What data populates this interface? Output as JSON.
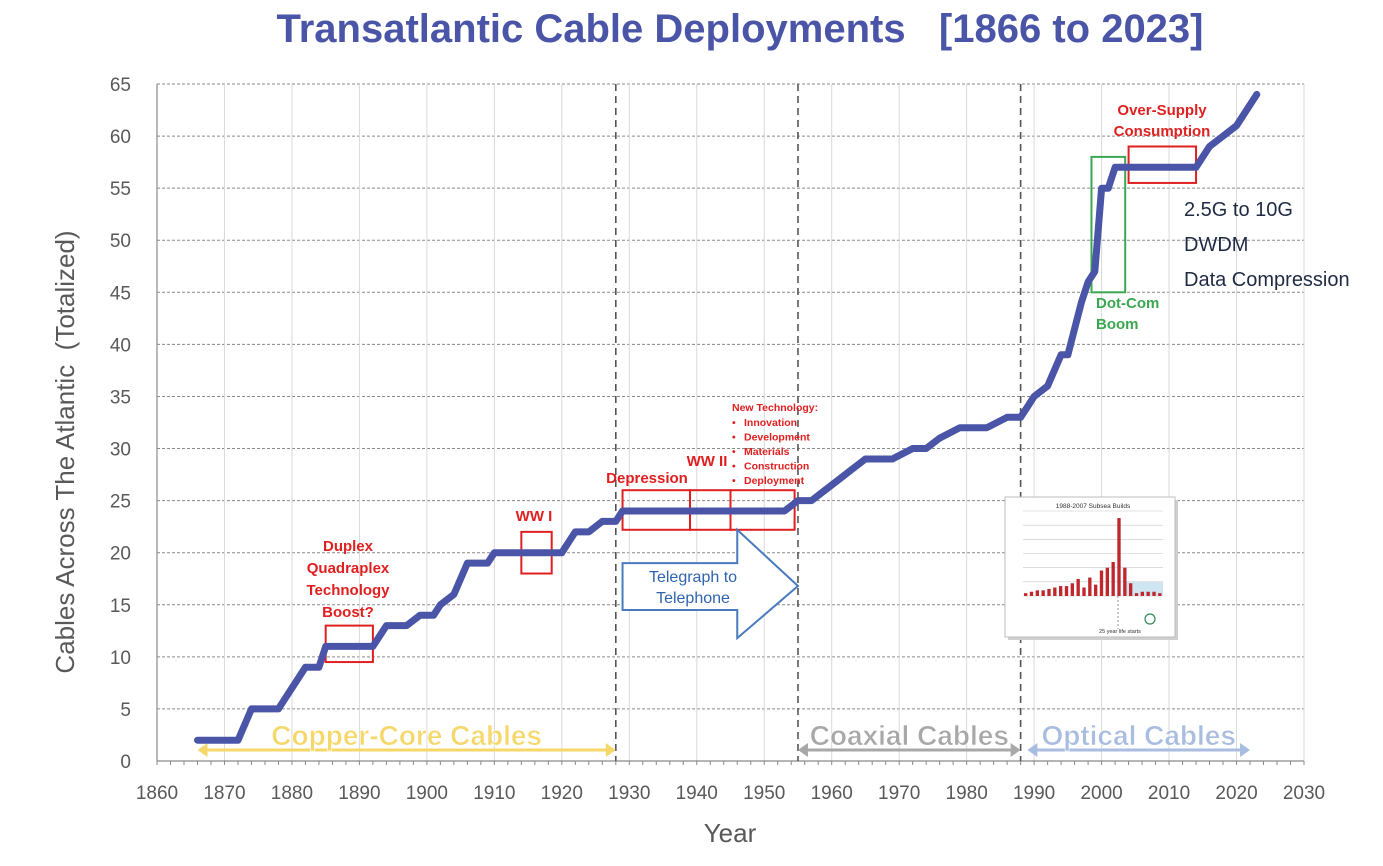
{
  "colors": {
    "line": "#4a55a8",
    "title": "#4a55a8",
    "grid": "#a6a6a6",
    "annotation_red": "#e02020",
    "annotation_green": "#3aa850",
    "copper": "#f5d76a",
    "coax": "#a8a8a8",
    "optical": "#a9bde0",
    "arrow_blue": "#4a7bbf"
  },
  "chart_data": {
    "type": "line",
    "title": "Transatlantic Cable Deployments   [1866 to 2023]",
    "xlabel": "Year",
    "ylabel": "Cables Across The Atlantic  (Totalized)",
    "xlim": [
      1860,
      2030
    ],
    "ylim": [
      0,
      65
    ],
    "xticks": [
      1860,
      1870,
      1880,
      1890,
      1900,
      1910,
      1920,
      1930,
      1940,
      1950,
      1960,
      1970,
      1980,
      1990,
      2000,
      2010,
      2020,
      2030
    ],
    "yticks": [
      0,
      5,
      10,
      15,
      20,
      25,
      30,
      35,
      40,
      45,
      50,
      55,
      60,
      65
    ],
    "grid": true,
    "series": [
      {
        "name": "Cables Across The Atlantic (Totalized)",
        "x": [
          1866,
          1872,
          1874,
          1878,
          1882,
          1884,
          1885,
          1892,
          1894,
          1897,
          1899,
          1901,
          1902,
          1904,
          1906,
          1909,
          1910,
          1918,
          1920,
          1922,
          1924,
          1926,
          1928,
          1929,
          1953,
          1955,
          1957,
          1959,
          1961,
          1963,
          1965,
          1967,
          1969,
          1972,
          1974,
          1976,
          1979,
          1981,
          1983,
          1986,
          1988,
          1989,
          1990,
          1992,
          1994,
          1995,
          1997,
          1998,
          1999,
          2000,
          2001,
          2002,
          2003,
          2004,
          2014,
          2016,
          2018,
          2020,
          2023
        ],
        "y": [
          2,
          2,
          5,
          5,
          9,
          9,
          11,
          11,
          13,
          13,
          14,
          14,
          15,
          16,
          19,
          19,
          20,
          20,
          20,
          22,
          22,
          23,
          23,
          24,
          24,
          25,
          25,
          26,
          27,
          28,
          29,
          29,
          29,
          30,
          30,
          31,
          32,
          32,
          32,
          33,
          33,
          34,
          35,
          36,
          39,
          39,
          44,
          46,
          47,
          55,
          55,
          57,
          57,
          57,
          57,
          59,
          60,
          61,
          64
        ]
      }
    ],
    "annotations": {
      "boost": [
        "Duplex",
        "Quadraplex",
        "Technology",
        "Boost?"
      ],
      "ww1": "WW I",
      "depression": "Depression",
      "ww2": "WW II",
      "new_tech_title": "New Technology:",
      "new_tech_items": [
        "Innovation",
        "Development",
        "Materials",
        "Construction",
        "Deployment"
      ],
      "telegraph": [
        "Telegraph to",
        "Telephone"
      ],
      "dotcom": [
        "Dot-Com",
        "Boom"
      ],
      "oversupply": [
        "Over-Supply",
        "Consumption"
      ],
      "tech_notes": [
        "2.5G to 10G",
        "DWDM",
        "Data Compression"
      ]
    },
    "eras": [
      {
        "label": "Copper-Core Cables",
        "start": 1866,
        "end": 1928
      },
      {
        "label": "Coaxial Cables",
        "start": 1955,
        "end": 1988
      },
      {
        "label": "Optical Cables",
        "start": 1989,
        "end": 2022
      }
    ],
    "dividers": [
      1928,
      1955,
      1988
    ],
    "inset": {
      "title": "1988-2007 Subsea Builds",
      "caption": "25 year life starts",
      "values": [
        0.2,
        0.3,
        0.4,
        0.4,
        0.5,
        0.6,
        0.7,
        0.7,
        0.9,
        1.2,
        0.6,
        1.3,
        0.8,
        1.8,
        2.0,
        2.4,
        5.5,
        2.0,
        0.9,
        0.2,
        0.3,
        0.3,
        0.3,
        0.2
      ]
    }
  }
}
